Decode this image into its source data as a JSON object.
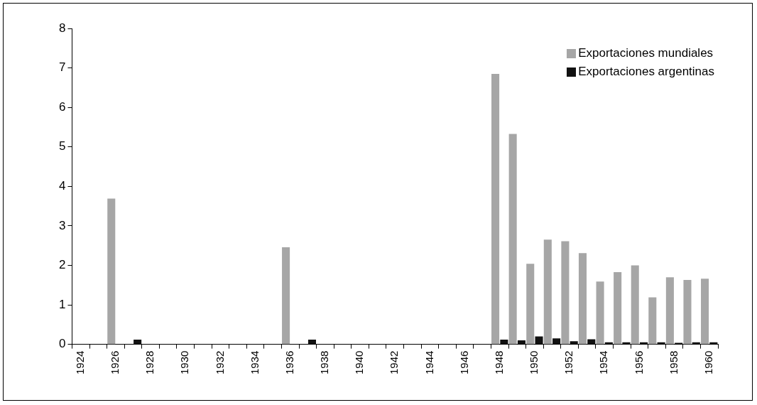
{
  "chart_data": {
    "type": "bar",
    "categories": [
      "1924",
      null,
      "1926",
      null,
      "1928",
      null,
      "1930",
      null,
      "1932",
      null,
      "1934",
      null,
      "1936",
      null,
      "1938",
      null,
      "1940",
      null,
      "1942",
      null,
      "1944",
      null,
      "1946",
      null,
      "1948",
      null,
      "1950",
      null,
      "1952",
      null,
      "1954",
      null,
      "1956",
      null,
      "1958",
      null,
      "1960"
    ],
    "series": [
      {
        "name": "Exportaciones mundiales",
        "color": "#a6a6a6",
        "values": [
          null,
          null,
          3.69,
          null,
          null,
          null,
          null,
          null,
          null,
          null,
          null,
          null,
          2.46,
          null,
          null,
          null,
          null,
          null,
          null,
          null,
          null,
          null,
          null,
          null,
          6.85,
          5.33,
          2.04,
          2.65,
          2.61,
          2.31,
          1.59,
          1.83,
          2.0,
          1.19,
          1.7,
          1.63,
          1.66
        ]
      },
      {
        "name": "Exportaciones argentinas",
        "color": "#111111",
        "values": [
          null,
          null,
          null,
          0.12,
          null,
          null,
          null,
          null,
          null,
          null,
          null,
          null,
          null,
          0.12,
          null,
          null,
          null,
          null,
          null,
          null,
          null,
          null,
          null,
          null,
          0.12,
          0.1,
          0.2,
          0.15,
          0.08,
          0.13,
          0.05,
          0.05,
          0.05,
          0.05,
          0.04,
          0.05,
          0.05
        ]
      }
    ],
    "ylim": [
      0,
      8
    ],
    "yticks": [
      0,
      1,
      2,
      3,
      4,
      5,
      6,
      7,
      8
    ],
    "grid": false,
    "legend": "top right"
  }
}
